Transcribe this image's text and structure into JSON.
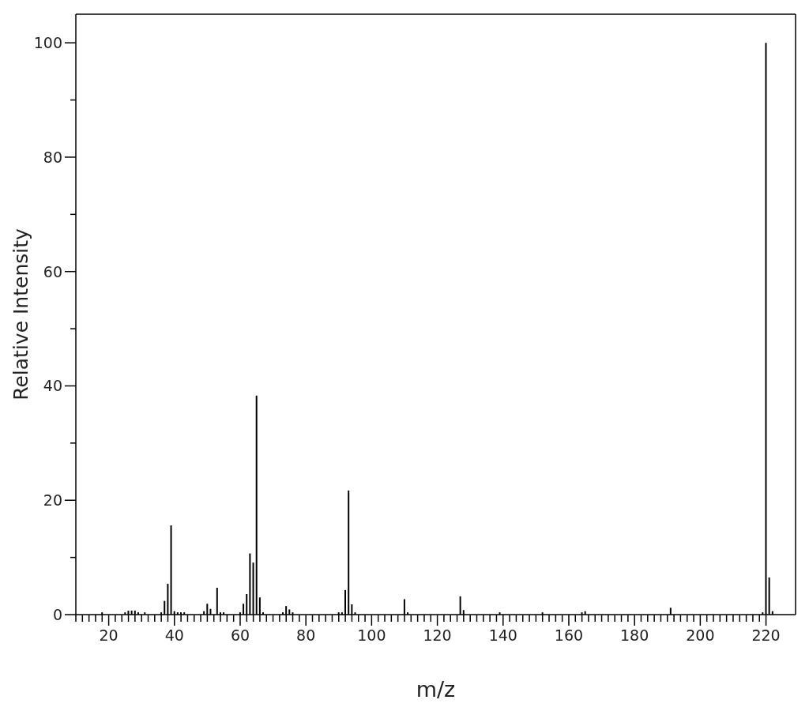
{
  "chart_data": {
    "type": "bar",
    "xlabel": "m/z",
    "ylabel": "Relative Intensity",
    "color": "#000000",
    "x": [
      18,
      25,
      26,
      27,
      28,
      29,
      31,
      36,
      37,
      38,
      39,
      40,
      41,
      42,
      43,
      49,
      50,
      51,
      53,
      54,
      55,
      60,
      61,
      62,
      63,
      64,
      65,
      66,
      67,
      73,
      74,
      75,
      76,
      90,
      91,
      92,
      93,
      94,
      95,
      110,
      111,
      127,
      128,
      139,
      152,
      164,
      165,
      191,
      219,
      220,
      221,
      222
    ],
    "values": [
      0.4,
      0.4,
      0.7,
      0.7,
      0.7,
      0.4,
      0.4,
      0.4,
      2.4,
      5.4,
      15.6,
      0.6,
      0.4,
      0.4,
      0.4,
      0.6,
      1.9,
      1.0,
      4.7,
      0.4,
      0.4,
      0.4,
      1.9,
      3.6,
      10.7,
      9.1,
      38.3,
      3.0,
      0.4,
      0.4,
      1.5,
      0.9,
      0.4,
      0.4,
      0.4,
      4.3,
      21.7,
      1.8,
      0.4,
      2.7,
      0.4,
      3.2,
      0.8,
      0.4,
      0.4,
      0.4,
      0.6,
      1.2,
      0.4,
      100,
      6.5,
      0.6
    ],
    "xlim": [
      10,
      229
    ],
    "ylim": [
      0,
      105
    ],
    "xticks": [
      {
        "value": 10,
        "label": null
      },
      {
        "value": 12,
        "label": null
      },
      {
        "value": 14,
        "label": null
      },
      {
        "value": 16,
        "label": null
      },
      {
        "value": 18,
        "label": null
      },
      20,
      {
        "value": 22,
        "label": null
      },
      {
        "value": 24,
        "label": null
      },
      {
        "value": 26,
        "label": null
      },
      {
        "value": 28,
        "label": null
      },
      {
        "value": 30,
        "label": null
      },
      {
        "value": 32,
        "label": null
      },
      {
        "value": 34,
        "label": null
      },
      {
        "value": 36,
        "label": null
      },
      {
        "value": 38,
        "label": null
      },
      40,
      {
        "value": 42,
        "label": null
      },
      {
        "value": 44,
        "label": null
      },
      {
        "value": 46,
        "label": null
      },
      {
        "value": 48,
        "label": null
      },
      {
        "value": 50,
        "label": null
      },
      {
        "value": 52,
        "label": null
      },
      {
        "value": 54,
        "label": null
      },
      {
        "value": 56,
        "label": null
      },
      {
        "value": 58,
        "label": null
      },
      60,
      {
        "value": 62,
        "label": null
      },
      {
        "value": 64,
        "label": null
      },
      {
        "value": 66,
        "label": null
      },
      {
        "value": 68,
        "label": null
      },
      {
        "value": 70,
        "label": null
      },
      {
        "value": 72,
        "label": null
      },
      {
        "value": 74,
        "label": null
      },
      {
        "value": 76,
        "label": null
      },
      {
        "value": 78,
        "label": null
      },
      80,
      {
        "value": 82,
        "label": null
      },
      {
        "value": 84,
        "label": null
      },
      {
        "value": 86,
        "label": null
      },
      {
        "value": 88,
        "label": null
      },
      {
        "value": 90,
        "label": null
      },
      {
        "value": 92,
        "label": null
      },
      {
        "value": 94,
        "label": null
      },
      {
        "value": 96,
        "label": null
      },
      {
        "value": 98,
        "label": null
      },
      100,
      {
        "value": 102,
        "label": null
      },
      {
        "value": 104,
        "label": null
      },
      {
        "value": 106,
        "label": null
      },
      {
        "value": 108,
        "label": null
      },
      {
        "value": 110,
        "label": null
      },
      {
        "value": 112,
        "label": null
      },
      {
        "value": 114,
        "label": null
      },
      {
        "value": 116,
        "label": null
      },
      {
        "value": 118,
        "label": null
      },
      120,
      {
        "value": 122,
        "label": null
      },
      {
        "value": 124,
        "label": null
      },
      {
        "value": 126,
        "label": null
      },
      {
        "value": 128,
        "label": null
      },
      {
        "value": 130,
        "label": null
      },
      {
        "value": 132,
        "label": null
      },
      {
        "value": 134,
        "label": null
      },
      {
        "value": 136,
        "label": null
      },
      {
        "value": 138,
        "label": null
      },
      140,
      {
        "value": 142,
        "label": null
      },
      {
        "value": 144,
        "label": null
      },
      {
        "value": 146,
        "label": null
      },
      {
        "value": 148,
        "label": null
      },
      {
        "value": 150,
        "label": null
      },
      {
        "value": 152,
        "label": null
      },
      {
        "value": 154,
        "label": null
      },
      {
        "value": 156,
        "label": null
      },
      {
        "value": 158,
        "label": null
      },
      160,
      {
        "value": 162,
        "label": null
      },
      {
        "value": 164,
        "label": null
      },
      {
        "value": 166,
        "label": null
      },
      {
        "value": 168,
        "label": null
      },
      {
        "value": 170,
        "label": null
      },
      {
        "value": 172,
        "label": null
      },
      {
        "value": 174,
        "label": null
      },
      {
        "value": 176,
        "label": null
      },
      {
        "value": 178,
        "label": null
      },
      180,
      {
        "value": 182,
        "label": null
      },
      {
        "value": 184,
        "label": null
      },
      {
        "value": 186,
        "label": null
      },
      {
        "value": 188,
        "label": null
      },
      {
        "value": 190,
        "label": null
      },
      {
        "value": 192,
        "label": null
      },
      {
        "value": 194,
        "label": null
      },
      {
        "value": 196,
        "label": null
      },
      {
        "value": 198,
        "label": null
      },
      200,
      {
        "value": 202,
        "label": null
      },
      {
        "value": 204,
        "label": null
      },
      {
        "value": 206,
        "label": null
      },
      {
        "value": 208,
        "label": null
      },
      {
        "value": 210,
        "label": null
      },
      {
        "value": 212,
        "label": null
      },
      {
        "value": 214,
        "label": null
      },
      {
        "value": 216,
        "label": null
      },
      {
        "value": 218,
        "label": null
      },
      220
    ],
    "yticks": [
      0,
      {
        "value": 10,
        "label": null
      },
      20,
      {
        "value": 30,
        "label": null
      },
      40,
      {
        "value": 50,
        "label": null
      },
      60,
      {
        "value": 70,
        "label": null
      },
      80,
      {
        "value": 90,
        "label": null
      },
      100
    ]
  }
}
